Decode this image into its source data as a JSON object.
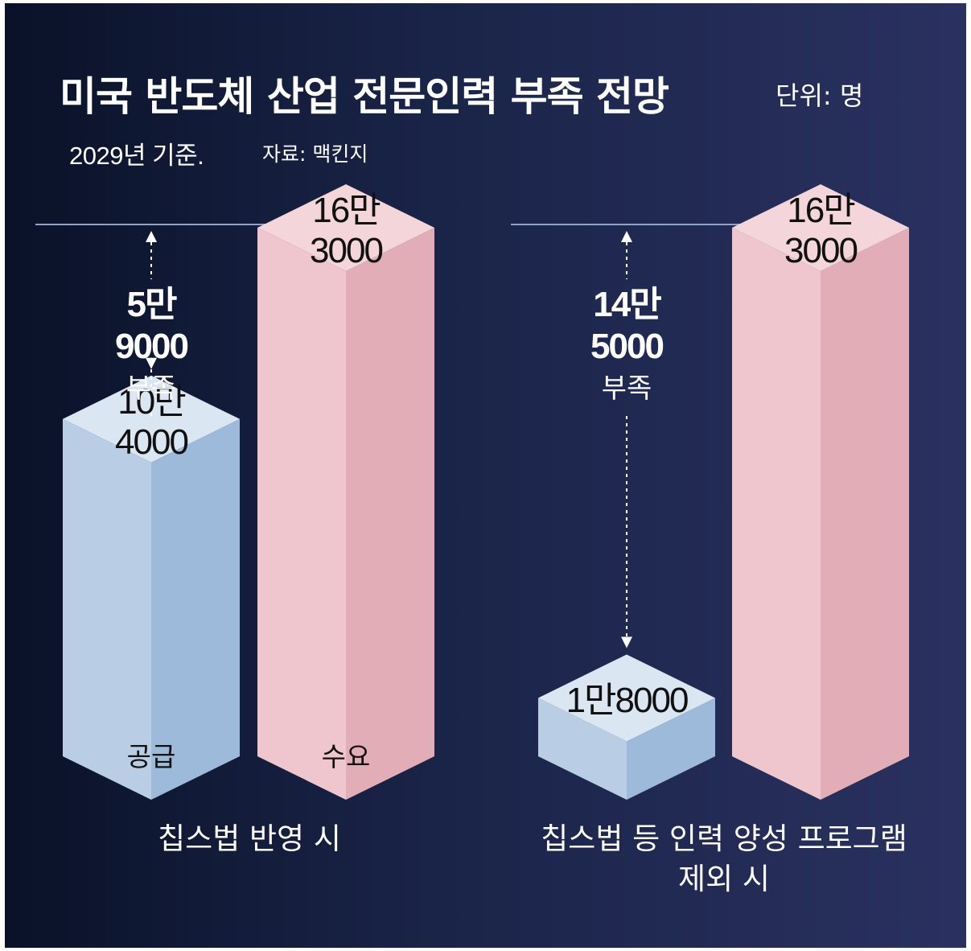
{
  "title": "미국 반도체 산업 전문인력 부족 전망",
  "unit": "단위: 명",
  "basis": "2029년 기준.",
  "source": "자료: 맥킨지",
  "chart_data": {
    "type": "bar",
    "unit": "명",
    "series_colors": {
      "공급": "#b8cde6",
      "수요": "#efc6cd"
    },
    "groups": [
      {
        "label": "칩스법 반영 시",
        "bars": [
          {
            "name": "공급",
            "value": 104000,
            "label": [
              "10만",
              "4000"
            ]
          },
          {
            "name": "수요",
            "value": 163000,
            "label": [
              "16만",
              "3000"
            ]
          }
        ],
        "shortage": {
          "value": 59000,
          "label": [
            "5만",
            "9000",
            "부족"
          ]
        }
      },
      {
        "label": "칩스법 등 인력 양성 프로그램 제외 시",
        "label_lines": [
          "칩스법 등 인력 양성 프로그램",
          "제외 시"
        ],
        "bars": [
          {
            "name": "",
            "value": 18000,
            "label": [
              "1만8000"
            ]
          },
          {
            "name": "",
            "value": 163000,
            "label": [
              "16만",
              "3000"
            ]
          }
        ],
        "shortage": {
          "value": 145000,
          "label": [
            "14만",
            "5000",
            "부족"
          ]
        }
      }
    ]
  }
}
